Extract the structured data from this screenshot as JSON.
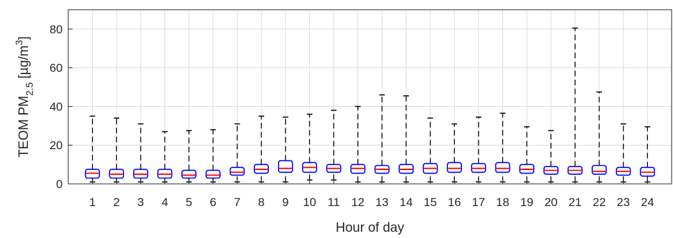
{
  "chart_data": {
    "type": "box",
    "xlabel": "Hour of day",
    "ylabel": {
      "prefix": "TEOM PM",
      "subscript": "2.5",
      "unit_open": " [µg/m",
      "superscript": "3",
      "unit_close": "]"
    },
    "categories": [
      "1",
      "2",
      "3",
      "4",
      "5",
      "6",
      "7",
      "8",
      "9",
      "10",
      "11",
      "12",
      "13",
      "14",
      "15",
      "16",
      "17",
      "18",
      "19",
      "20",
      "21",
      "22",
      "23",
      "24"
    ],
    "ylim": [
      0,
      90
    ],
    "yticks": [
      0,
      20,
      40,
      60,
      80
    ],
    "grid": true,
    "colors": {
      "box": "#0000ff",
      "median": "#ff0000",
      "whisker": "#000000",
      "grid": "#dcdcdc",
      "axis": "#262626"
    },
    "boxes": [
      {
        "whisker_low": 1,
        "q1": 3,
        "median": 5.5,
        "q3": 7.5,
        "whisker_high": 35
      },
      {
        "whisker_low": 1,
        "q1": 3,
        "median": 5,
        "q3": 7.5,
        "whisker_high": 34
      },
      {
        "whisker_low": 1,
        "q1": 3,
        "median": 5,
        "q3": 7.5,
        "whisker_high": 31
      },
      {
        "whisker_low": 1,
        "q1": 3,
        "median": 5,
        "q3": 7.5,
        "whisker_high": 27
      },
      {
        "whisker_low": 1,
        "q1": 3,
        "median": 4.5,
        "q3": 7,
        "whisker_high": 27.5
      },
      {
        "whisker_low": 1,
        "q1": 3,
        "median": 4.5,
        "q3": 7,
        "whisker_high": 28
      },
      {
        "whisker_low": 1,
        "q1": 4.5,
        "median": 6,
        "q3": 8.5,
        "whisker_high": 31
      },
      {
        "whisker_low": 1,
        "q1": 5.5,
        "median": 7.5,
        "q3": 10,
        "whisker_high": 35
      },
      {
        "whisker_low": 1,
        "q1": 6,
        "median": 8,
        "q3": 12,
        "whisker_high": 34.5
      },
      {
        "whisker_low": 2,
        "q1": 6,
        "median": 8.5,
        "q3": 11,
        "whisker_high": 36
      },
      {
        "whisker_low": 2,
        "q1": 6,
        "median": 8,
        "q3": 10,
        "whisker_high": 38
      },
      {
        "whisker_low": 1,
        "q1": 5.5,
        "median": 8,
        "q3": 10,
        "whisker_high": 40
      },
      {
        "whisker_low": 1,
        "q1": 5.5,
        "median": 7.5,
        "q3": 9.5,
        "whisker_high": 46
      },
      {
        "whisker_low": 1,
        "q1": 5.5,
        "median": 7.5,
        "q3": 10,
        "whisker_high": 45.5
      },
      {
        "whisker_low": 1,
        "q1": 5.5,
        "median": 8,
        "q3": 10.5,
        "whisker_high": 34
      },
      {
        "whisker_low": 1,
        "q1": 6,
        "median": 8,
        "q3": 11,
        "whisker_high": 31
      },
      {
        "whisker_low": 1,
        "q1": 6,
        "median": 8,
        "q3": 10.5,
        "whisker_high": 34.5
      },
      {
        "whisker_low": 1,
        "q1": 6,
        "median": 8,
        "q3": 11,
        "whisker_high": 36.5
      },
      {
        "whisker_low": 1,
        "q1": 5.5,
        "median": 7.5,
        "q3": 10,
        "whisker_high": 29.5
      },
      {
        "whisker_low": 1,
        "q1": 5,
        "median": 7,
        "q3": 9,
        "whisker_high": 27.5
      },
      {
        "whisker_low": 1,
        "q1": 5,
        "median": 7,
        "q3": 9,
        "whisker_high": 80.5
      },
      {
        "whisker_low": 1,
        "q1": 5,
        "median": 6.5,
        "q3": 9.5,
        "whisker_high": 47.5
      },
      {
        "whisker_low": 1,
        "q1": 4.5,
        "median": 6.5,
        "q3": 8.5,
        "whisker_high": 31
      },
      {
        "whisker_low": 1,
        "q1": 4,
        "median": 6,
        "q3": 8.5,
        "whisker_high": 29.5
      }
    ]
  }
}
